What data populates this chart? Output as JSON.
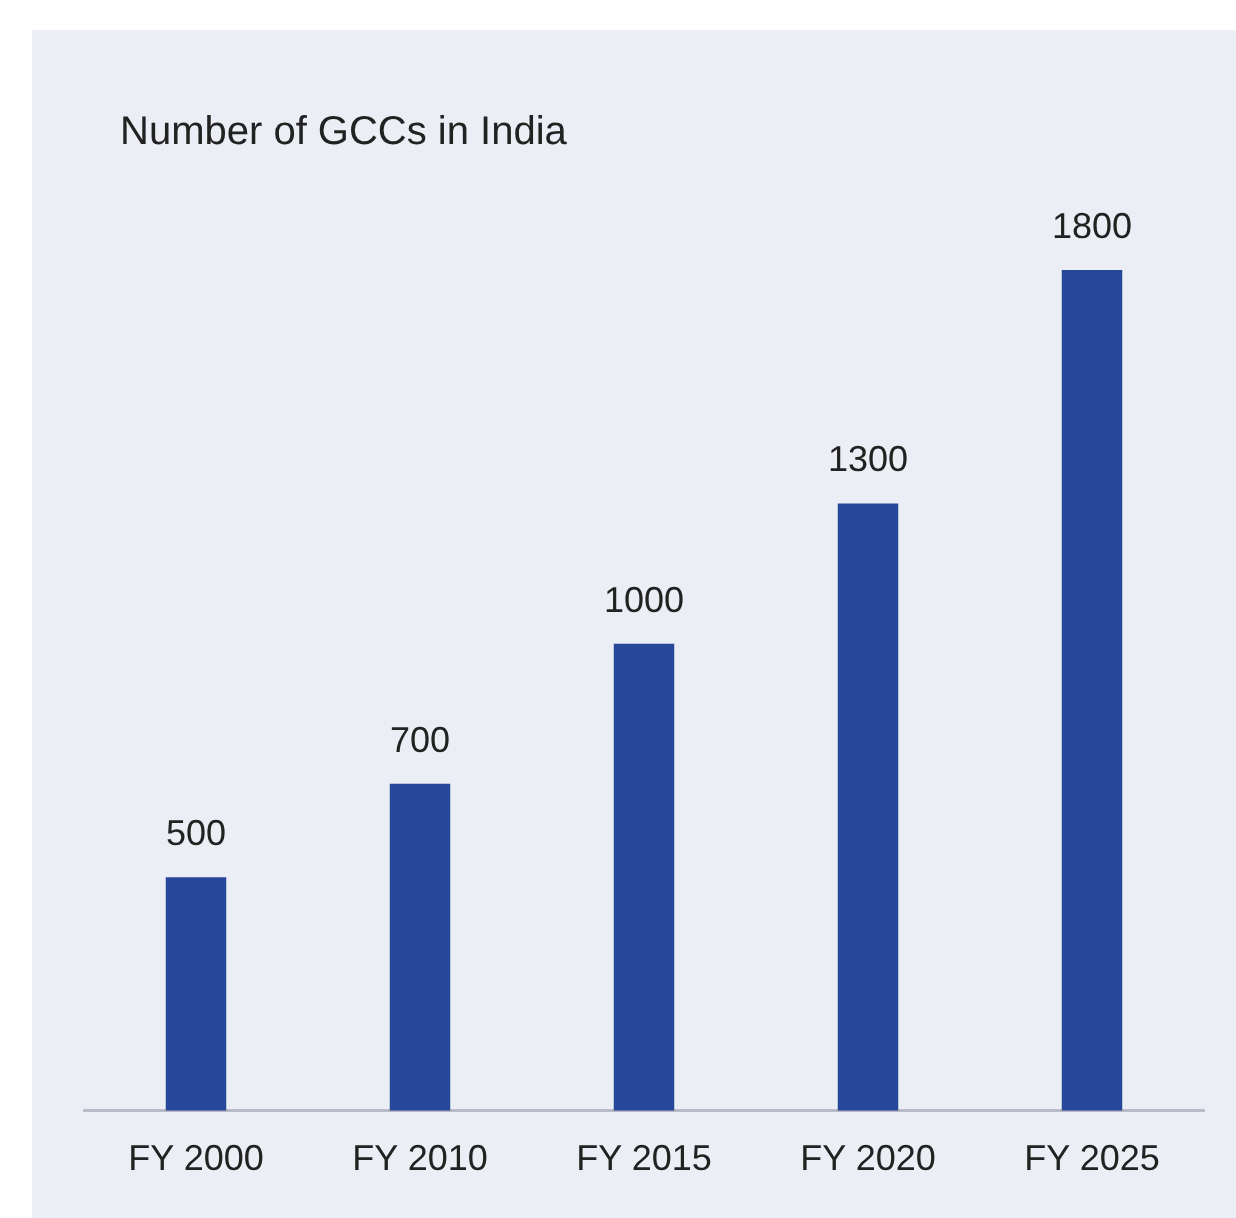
{
  "chart_data": {
    "type": "bar",
    "title": "Number of GCCs in India",
    "categories": [
      "FY 2000",
      "FY 2010",
      "FY 2015",
      "FY 2020",
      "FY 2025"
    ],
    "values": [
      500,
      700,
      1000,
      1300,
      1800
    ],
    "color": "#26479a",
    "data_labels": true
  }
}
